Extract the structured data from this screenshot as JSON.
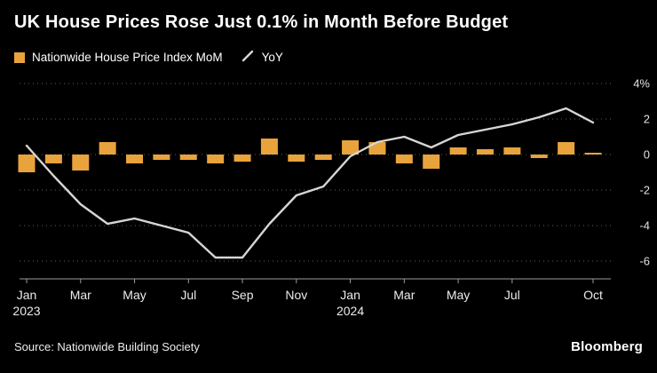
{
  "header": {
    "title": "UK House Prices Rose Just 0.1% in Month Before Budget"
  },
  "legend": [
    {
      "label": "Nationwide House Price Index MoM",
      "swatch": "square",
      "color": "#E8A33D"
    },
    {
      "label": "YoY",
      "swatch": "line",
      "color": "#D6D6D4"
    }
  ],
  "chart_data": {
    "type": "bar+line",
    "title": "UK House Prices Rose Just 0.1% in Month Before Budget",
    "x": [
      "Jan 2023",
      "Feb 2023",
      "Mar 2023",
      "Apr 2023",
      "May 2023",
      "Jun 2023",
      "Jul 2023",
      "Aug 2023",
      "Sep 2023",
      "Oct 2023",
      "Nov 2023",
      "Dec 2023",
      "Jan 2024",
      "Feb 2024",
      "Mar 2024",
      "Apr 2024",
      "May 2024",
      "Jun 2024",
      "Jul 2024",
      "Aug 2024",
      "Sep 2024",
      "Oct 2024"
    ],
    "series": [
      {
        "name": "Nationwide House Price Index MoM",
        "type": "bar",
        "color": "#E8A33D",
        "values": [
          -1.0,
          -0.5,
          -0.9,
          0.7,
          -0.5,
          -0.3,
          -0.3,
          -0.5,
          -0.4,
          0.9,
          -0.4,
          -0.3,
          0.8,
          0.7,
          -0.5,
          -0.8,
          0.4,
          0.3,
          0.4,
          -0.2,
          0.7,
          0.1
        ]
      },
      {
        "name": "YoY",
        "type": "line",
        "color": "#D6D6D4",
        "values": [
          0.5,
          -1.2,
          -2.8,
          -3.9,
          -3.6,
          -4.0,
          -4.4,
          -5.8,
          -5.8,
          -3.9,
          -2.3,
          -1.8,
          -0.1,
          0.7,
          1.0,
          0.4,
          1.1,
          1.4,
          1.7,
          2.1,
          2.6,
          1.8
        ]
      }
    ],
    "ylim": [
      -7,
      4.8
    ],
    "yticks": [
      4,
      2,
      0,
      -2,
      -4,
      -6
    ],
    "ytick_labels": [
      "4%",
      "2",
      "0",
      "-2",
      "-4",
      "-6"
    ],
    "xticks": [
      {
        "index": 0,
        "label": "Jan",
        "year": "2023"
      },
      {
        "index": 2,
        "label": "Mar"
      },
      {
        "index": 4,
        "label": "May"
      },
      {
        "index": 6,
        "label": "Jul"
      },
      {
        "index": 8,
        "label": "Sep"
      },
      {
        "index": 10,
        "label": "Nov"
      },
      {
        "index": 12,
        "label": "Jan",
        "year": "2024"
      },
      {
        "index": 14,
        "label": "Mar"
      },
      {
        "index": 16,
        "label": "May"
      },
      {
        "index": 18,
        "label": "Jul"
      },
      {
        "index": 21,
        "label": "Oct"
      }
    ],
    "grid": "dotted-horizontal",
    "legend_position": "top-left",
    "axis_label_side": "right"
  },
  "footer": {
    "source": "Source: Nationwide Building Society",
    "brand": "Bloomberg"
  }
}
